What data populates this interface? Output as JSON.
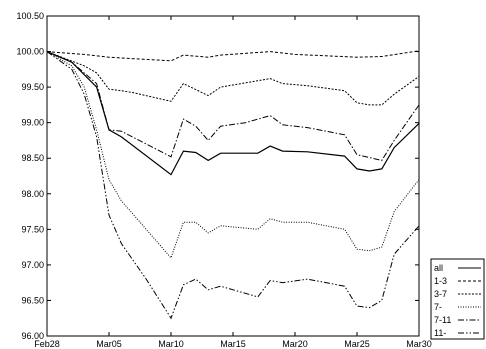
{
  "chart_data": {
    "type": "line",
    "title": "",
    "xlabel": "",
    "ylabel": "",
    "ylim": [
      96.0,
      100.5
    ],
    "xlim": [
      "Feb28",
      "Mar30"
    ],
    "grid": false,
    "legend_position": "bottom-right",
    "y_ticks": [
      "100.50",
      "100.00",
      "99.50",
      "99.00",
      "98.50",
      "98.00",
      "97.50",
      "97.00",
      "96.50",
      "96.00"
    ],
    "x_ticks": [
      {
        "day": 0,
        "label": "Feb28"
      },
      {
        "day": 5,
        "label": "Mar05"
      },
      {
        "day": 10,
        "label": "Mar10"
      },
      {
        "day": 15,
        "label": "Mar15"
      },
      {
        "day": 20,
        "label": "Mar20"
      },
      {
        "day": 25,
        "label": "Mar25"
      },
      {
        "day": 30,
        "label": "Mar30"
      }
    ],
    "series": [
      {
        "name": "all",
        "dash": "",
        "points": [
          [
            0,
            100.0
          ],
          [
            2,
            99.85
          ],
          [
            4,
            99.5
          ],
          [
            5,
            98.9
          ],
          [
            6,
            98.8
          ],
          [
            10,
            98.27
          ],
          [
            11,
            98.6
          ],
          [
            12,
            98.58
          ],
          [
            13,
            98.47
          ],
          [
            14,
            98.57
          ],
          [
            17,
            98.57
          ],
          [
            18,
            98.67
          ],
          [
            19,
            98.6
          ],
          [
            21,
            98.59
          ],
          [
            24,
            98.53
          ],
          [
            25,
            98.35
          ],
          [
            26,
            98.32
          ],
          [
            27,
            98.35
          ],
          [
            28,
            98.65
          ],
          [
            30,
            98.99
          ]
        ]
      },
      {
        "name": "1-3",
        "dash": "3,2",
        "points": [
          [
            0,
            100.0
          ],
          [
            3,
            99.96
          ],
          [
            5,
            99.92
          ],
          [
            7,
            99.9
          ],
          [
            10,
            99.87
          ],
          [
            11,
            99.95
          ],
          [
            13,
            99.92
          ],
          [
            14,
            99.95
          ],
          [
            18,
            100.0
          ],
          [
            20,
            99.96
          ],
          [
            25,
            99.92
          ],
          [
            27,
            99.93
          ],
          [
            30,
            100.01
          ]
        ]
      },
      {
        "name": "3-7",
        "dash": "2,1.5",
        "points": [
          [
            0,
            100.0
          ],
          [
            3,
            99.8
          ],
          [
            4,
            99.7
          ],
          [
            5,
            99.47
          ],
          [
            6,
            99.45
          ],
          [
            7,
            99.42
          ],
          [
            10,
            99.3
          ],
          [
            11,
            99.55
          ],
          [
            13,
            99.38
          ],
          [
            14,
            99.5
          ],
          [
            18,
            99.62
          ],
          [
            19,
            99.55
          ],
          [
            21,
            99.52
          ],
          [
            24,
            99.45
          ],
          [
            25,
            99.28
          ],
          [
            26,
            99.25
          ],
          [
            27,
            99.25
          ],
          [
            28,
            99.4
          ],
          [
            30,
            99.65
          ]
        ]
      },
      {
        "name": "7-",
        "dash": "1,1.5",
        "points": [
          [
            0,
            100.0
          ],
          [
            2,
            99.8
          ],
          [
            3,
            99.5
          ],
          [
            4,
            98.9
          ],
          [
            5,
            98.2
          ],
          [
            6,
            97.9
          ],
          [
            8,
            97.5
          ],
          [
            10,
            97.1
          ],
          [
            11,
            97.6
          ],
          [
            12,
            97.6
          ],
          [
            13,
            97.45
          ],
          [
            14,
            97.55
          ],
          [
            17,
            97.5
          ],
          [
            18,
            97.65
          ],
          [
            19,
            97.6
          ],
          [
            21,
            97.6
          ],
          [
            24,
            97.5
          ],
          [
            25,
            97.22
          ],
          [
            26,
            97.2
          ],
          [
            27,
            97.25
          ],
          [
            28,
            97.75
          ],
          [
            30,
            98.2
          ]
        ]
      },
      {
        "name": "7-11",
        "dash": "6,2,1.5,2",
        "points": [
          [
            0,
            100.0
          ],
          [
            2,
            99.85
          ],
          [
            4,
            99.55
          ],
          [
            5,
            98.9
          ],
          [
            6,
            98.88
          ],
          [
            10,
            98.52
          ],
          [
            11,
            99.05
          ],
          [
            12,
            98.95
          ],
          [
            13,
            98.75
          ],
          [
            14,
            98.95
          ],
          [
            16,
            99.0
          ],
          [
            18,
            99.1
          ],
          [
            19,
            98.97
          ],
          [
            21,
            98.93
          ],
          [
            24,
            98.83
          ],
          [
            25,
            98.55
          ],
          [
            27,
            98.47
          ],
          [
            28,
            98.75
          ],
          [
            30,
            99.25
          ]
        ]
      },
      {
        "name": "11-",
        "dash": "6,2,1.5,2,1.5,2",
        "points": [
          [
            0,
            100.0
          ],
          [
            2,
            99.75
          ],
          [
            3,
            99.4
          ],
          [
            4,
            98.8
          ],
          [
            5,
            97.7
          ],
          [
            6,
            97.3
          ],
          [
            8,
            96.8
          ],
          [
            10,
            96.25
          ],
          [
            11,
            96.72
          ],
          [
            12,
            96.8
          ],
          [
            13,
            96.65
          ],
          [
            14,
            96.7
          ],
          [
            17,
            96.55
          ],
          [
            18,
            96.78
          ],
          [
            19,
            96.75
          ],
          [
            21,
            96.8
          ],
          [
            24,
            96.7
          ],
          [
            25,
            96.42
          ],
          [
            26,
            96.4
          ],
          [
            27,
            96.5
          ],
          [
            28,
            97.15
          ],
          [
            30,
            97.55
          ]
        ]
      }
    ]
  }
}
